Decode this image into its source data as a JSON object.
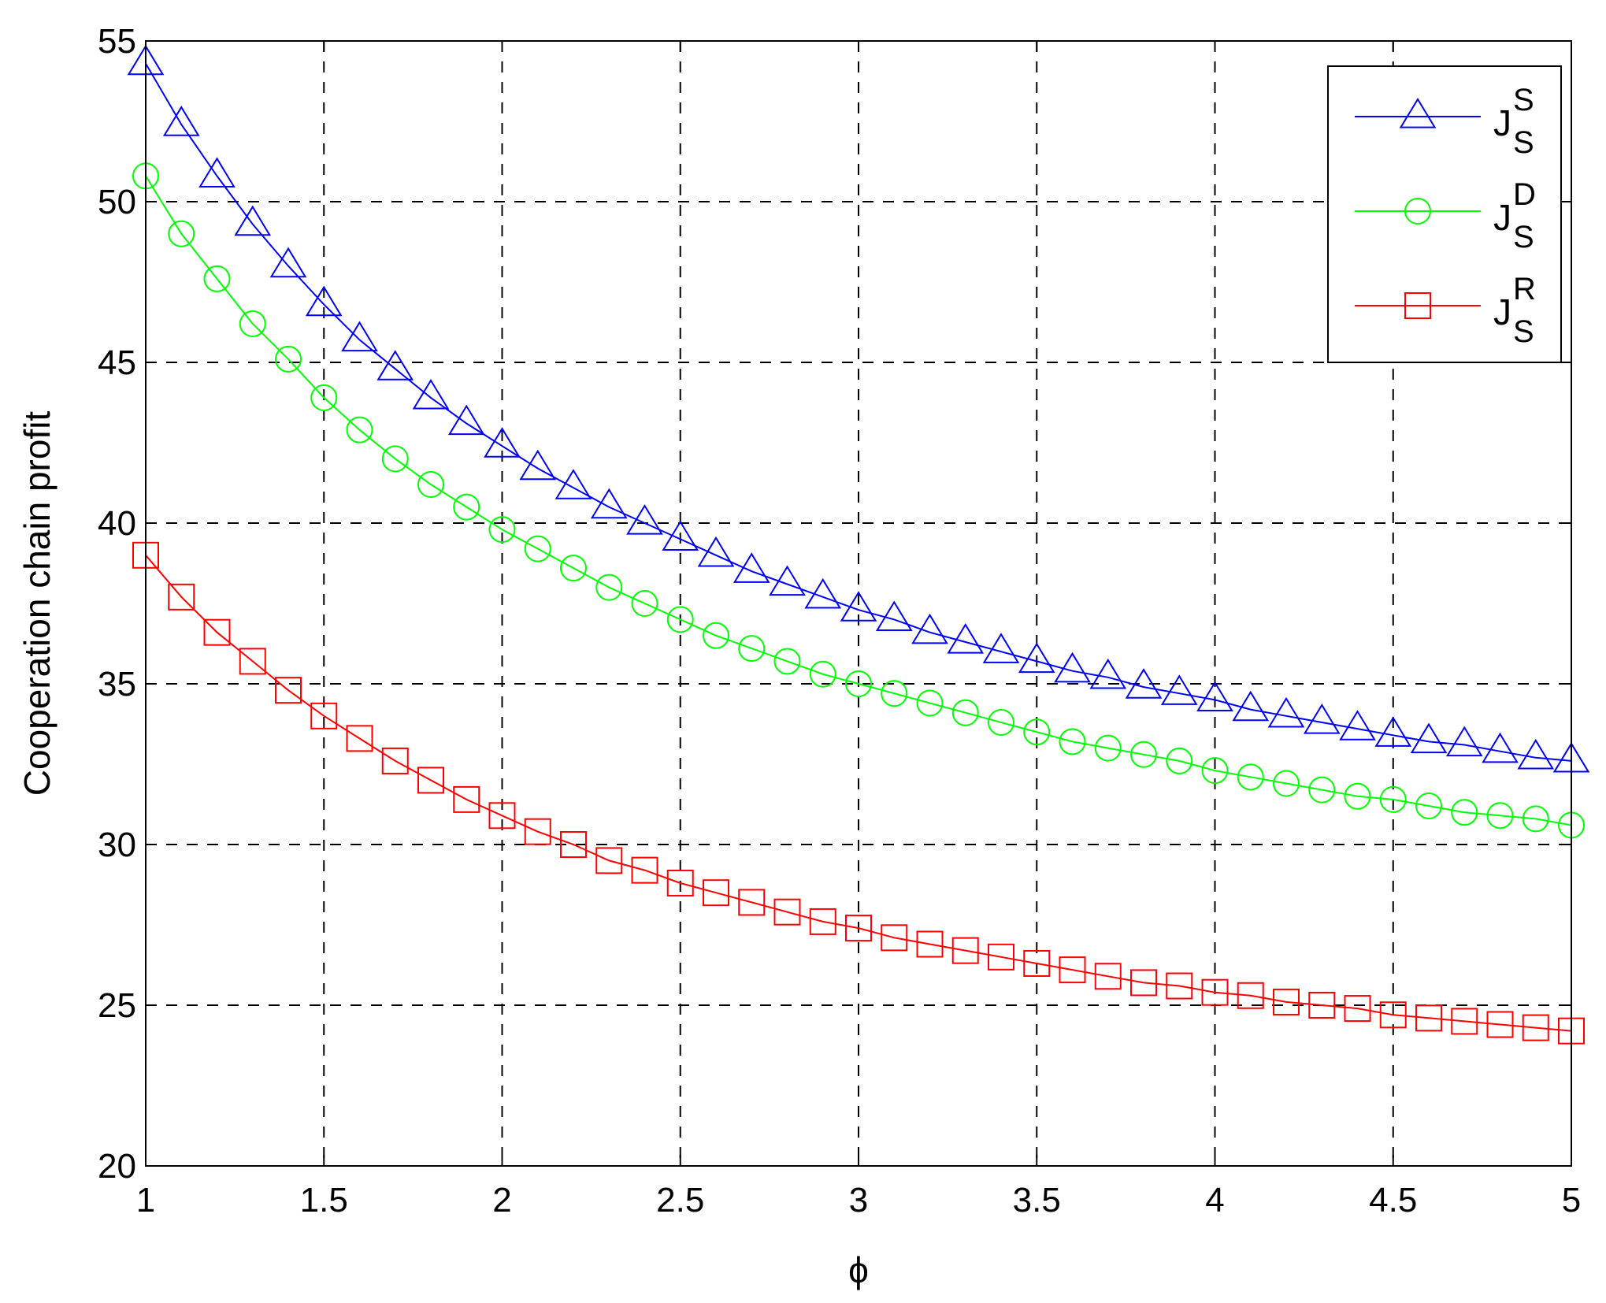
{
  "chart_data": {
    "type": "line",
    "title": "",
    "xlabel": "ϕ",
    "ylabel": "Cooperation chain profit",
    "xlim": [
      1,
      5
    ],
    "ylim": [
      20,
      55
    ],
    "xticks": [
      "1",
      "1.5",
      "2",
      "2.5",
      "3",
      "3.5",
      "4",
      "4.5",
      "5"
    ],
    "yticks": [
      "20",
      "25",
      "30",
      "35",
      "40",
      "45",
      "50",
      "55"
    ],
    "grid": true,
    "legend_position": "top-right",
    "x": [
      1.0,
      1.1,
      1.2,
      1.3,
      1.4,
      1.5,
      1.6,
      1.7,
      1.8,
      1.9,
      2.0,
      2.1,
      2.2,
      2.3,
      2.4,
      2.5,
      2.6,
      2.7,
      2.8,
      2.9,
      3.0,
      3.1,
      3.2,
      3.3,
      3.4,
      3.5,
      3.6,
      3.7,
      3.8,
      3.9,
      4.0,
      4.1,
      4.2,
      4.3,
      4.4,
      4.5,
      4.6,
      4.7,
      4.8,
      4.9,
      5.0
    ],
    "series": [
      {
        "name": "J",
        "sup": "S",
        "sub": "S",
        "color": "#0000ff",
        "marker": "triangle",
        "values": [
          54.3,
          52.4,
          50.8,
          49.3,
          48.0,
          46.8,
          45.7,
          44.8,
          43.9,
          43.1,
          42.4,
          41.7,
          41.1,
          40.5,
          40.0,
          39.5,
          39.0,
          38.5,
          38.1,
          37.7,
          37.3,
          37.0,
          36.6,
          36.3,
          36.0,
          35.7,
          35.4,
          35.2,
          34.9,
          34.7,
          34.5,
          34.2,
          34.0,
          33.8,
          33.6,
          33.4,
          33.2,
          33.1,
          32.9,
          32.7,
          32.6
        ]
      },
      {
        "name": "J",
        "sup": "D",
        "sub": "S",
        "color": "#00ff00",
        "marker": "circle",
        "values": [
          50.8,
          49.0,
          47.6,
          46.2,
          45.1,
          43.9,
          42.9,
          42.0,
          41.2,
          40.5,
          39.8,
          39.2,
          38.6,
          38.0,
          37.5,
          37.0,
          36.5,
          36.1,
          35.7,
          35.3,
          35.0,
          34.7,
          34.4,
          34.1,
          33.8,
          33.5,
          33.2,
          33.0,
          32.8,
          32.6,
          32.3,
          32.1,
          31.9,
          31.7,
          31.5,
          31.4,
          31.2,
          31.0,
          30.9,
          30.8,
          30.6
        ]
      },
      {
        "name": "J",
        "sup": "R",
        "sub": "S",
        "color": "#ff0000",
        "marker": "square",
        "values": [
          39.0,
          37.7,
          36.6,
          35.7,
          34.8,
          34.0,
          33.3,
          32.6,
          32.0,
          31.4,
          30.9,
          30.4,
          30.0,
          29.5,
          29.2,
          28.8,
          28.5,
          28.2,
          27.9,
          27.6,
          27.4,
          27.1,
          26.9,
          26.7,
          26.5,
          26.3,
          26.1,
          25.9,
          25.7,
          25.6,
          25.4,
          25.3,
          25.1,
          25.0,
          24.9,
          24.7,
          24.6,
          24.5,
          24.4,
          24.3,
          24.2
        ]
      }
    ]
  }
}
